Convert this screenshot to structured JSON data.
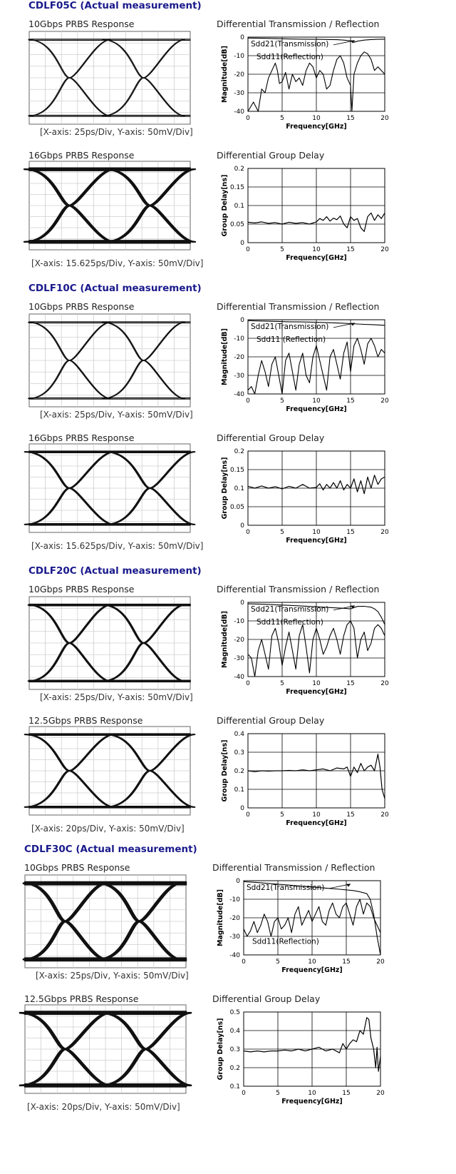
{
  "sections": [
    {
      "title": "CDLF05C (Actual measurement)",
      "eye1": {
        "label": "10Gbps PRBS Response",
        "caption": "[X-axis: 25ps/Div, Y-axis: 50mV/Div]",
        "ui_fraction": 0.46,
        "trace_width": 1.2
      },
      "plot1": {
        "label": "Differential Transmission / Reflection",
        "kind": "sparam",
        "annotations": [
          "Sdd21(Transmission)",
          "Sdd11(Reflection)"
        ]
      },
      "eye2": {
        "label": "16Gbps PRBS Response",
        "caption": "[X-axis: 15.625ps/Div, Y-axis: 50mV/Div]",
        "ui_fraction": 0.5,
        "trace_width": 2.2
      },
      "plot2": {
        "label": "Differential Group Delay",
        "kind": "gd"
      }
    },
    {
      "title": "CDLF10C (Actual measurement)",
      "eye1": {
        "label": "10Gbps PRBS Response",
        "caption": "[X-axis: 25ps/Div, Y-axis: 50mV/Div]",
        "ui_fraction": 0.46,
        "trace_width": 1.3
      },
      "plot1": {
        "label": "Differential Transmission / Reflection",
        "kind": "sparam",
        "annotations": [
          "Sdd21(Transmission)",
          "Sdd11 (Reflection)"
        ]
      },
      "eye2": {
        "label": "16Gbps PRBS Response",
        "caption": "[X-axis: 15.625ps/Div, Y-axis: 50mV/Div]",
        "ui_fraction": 0.5,
        "trace_width": 2.0
      },
      "plot2": {
        "label": "Differential Group Delay",
        "kind": "gd"
      }
    },
    {
      "title": "CDLF20C (Actual measurement)",
      "eye1": {
        "label": "10Gbps PRBS Response",
        "caption": "[X-axis: 25ps/Div, Y-axis: 50mV/Div]",
        "ui_fraction": 0.46,
        "trace_width": 2.0
      },
      "plot1": {
        "label": "Differential Transmission / Reflection",
        "kind": "sparam",
        "annotations": [
          "Sdd21(Transmission)",
          "Sdd11(Reflection)"
        ]
      },
      "eye2": {
        "label": "12.5Gbps PRBS Response",
        "caption": "[X-axis: 20ps/Div, Y-axis: 50mV/Div]",
        "ui_fraction": 0.5,
        "trace_width": 2.0
      },
      "plot2": {
        "label": "Differential Group Delay",
        "kind": "gd"
      }
    },
    {
      "title": "CDLF30C (Actual measurement)",
      "eye1": {
        "label": "10Gbps PRBS Response",
        "caption": "[X-axis: 25ps/Div, Y-axis: 50mV/Div]",
        "ui_fraction": 0.46,
        "trace_width": 2.6
      },
      "plot1": {
        "label": "Differential Transmission / Reflection",
        "kind": "sparam",
        "annotations": [
          "Sdd21(Transmission)",
          "Sdd11(Reflection)"
        ]
      },
      "eye2": {
        "label": "12.5Gbps PRBS Response",
        "caption": "[X-axis: 20ps/Div, Y-axis: 50mV/Div]",
        "ui_fraction": 0.5,
        "trace_width": 2.6
      },
      "plot2": {
        "label": "Differential Group Delay",
        "kind": "gd"
      }
    }
  ],
  "chart_data": [
    {
      "id": "s0-sparam",
      "type": "line",
      "xlabel": "Frequency[GHz]",
      "ylabel": "Magnitude[dB]",
      "xlim": [
        0,
        20
      ],
      "ylim": [
        -40,
        0
      ],
      "xticks": [
        0,
        5,
        10,
        15,
        20
      ],
      "yticks": [
        0,
        -10,
        -20,
        -30,
        -40
      ],
      "grid": true,
      "series": [
        {
          "name": "Sdd21(Transmission)",
          "x": [
            0,
            2,
            4,
            6,
            8,
            10,
            12,
            13,
            14,
            15,
            15.5,
            16,
            17,
            18,
            19,
            20
          ],
          "y": [
            -0.5,
            -0.6,
            -0.8,
            -1,
            -1.1,
            -1.2,
            -1.3,
            -1.4,
            -1.6,
            -2,
            -2.8,
            -2.2,
            -1.6,
            -1.3,
            -1.2,
            -1.1
          ]
        },
        {
          "name": "Sdd11(Reflection)",
          "x": [
            0,
            0.8,
            1.5,
            2,
            2.5,
            3,
            3.5,
            4,
            4.3,
            4.6,
            5,
            5.5,
            6,
            6.5,
            7,
            7.5,
            8,
            8.5,
            9,
            9.5,
            10,
            10.5,
            11,
            11.5,
            12,
            12.5,
            13,
            13.5,
            14,
            14.5,
            15,
            15.2,
            15.5,
            16,
            16.5,
            17,
            17.5,
            18,
            18.5,
            19,
            19.5,
            20
          ],
          "y": [
            -40,
            -35,
            -40,
            -28,
            -30,
            -22,
            -18,
            -14,
            -18,
            -25,
            -24,
            -19,
            -28,
            -20,
            -24,
            -22,
            -26,
            -18,
            -14,
            -16,
            -22,
            -18,
            -20,
            -28,
            -26,
            -18,
            -12,
            -10,
            -14,
            -22,
            -26,
            -40,
            -20,
            -14,
            -10,
            -8,
            -9,
            -12,
            -18,
            -16,
            -18,
            -20
          ]
        }
      ]
    },
    {
      "id": "s0-gd",
      "type": "line",
      "xlabel": "Frequency[GHz]",
      "ylabel": "Group Delay[ns]",
      "xlim": [
        0,
        20
      ],
      "ylim": [
        0,
        0.2
      ],
      "xticks": [
        0,
        5,
        10,
        15,
        20
      ],
      "yticks": [
        0,
        0.05,
        0.1,
        0.15,
        0.2
      ],
      "grid": true,
      "series": [
        {
          "name": "",
          "x": [
            0,
            1,
            2,
            3,
            4,
            5,
            6,
            7,
            8,
            9,
            10,
            10.5,
            11,
            11.5,
            12,
            12.5,
            13,
            13.5,
            14,
            14.5,
            15,
            15.5,
            16,
            16.5,
            17,
            17.5,
            18,
            18.5,
            19,
            19.5,
            20
          ],
          "y": [
            0.055,
            0.053,
            0.056,
            0.052,
            0.054,
            0.05,
            0.055,
            0.052,
            0.054,
            0.05,
            0.056,
            0.065,
            0.06,
            0.07,
            0.058,
            0.066,
            0.062,
            0.072,
            0.05,
            0.04,
            0.07,
            0.06,
            0.065,
            0.04,
            0.03,
            0.07,
            0.08,
            0.06,
            0.075,
            0.065,
            0.08
          ]
        }
      ]
    },
    {
      "id": "s1-sparam",
      "type": "line",
      "xlabel": "Frequency[GHz]",
      "ylabel": "Magnitude[dB]",
      "xlim": [
        0,
        20
      ],
      "ylim": [
        -40,
        0
      ],
      "xticks": [
        0,
        5,
        10,
        15,
        20
      ],
      "yticks": [
        0,
        -10,
        -20,
        -30,
        -40
      ],
      "grid": true,
      "series": [
        {
          "name": "Sdd21(Transmission)",
          "x": [
            0,
            2,
            4,
            6,
            8,
            10,
            12,
            14,
            15,
            16,
            17,
            18,
            19,
            20
          ],
          "y": [
            -0.5,
            -0.7,
            -0.9,
            -1.1,
            -1.2,
            -1.4,
            -1.6,
            -1.9,
            -2.1,
            -2.3,
            -2.5,
            -2.6,
            -2.8,
            -3
          ]
        },
        {
          "name": "Sdd11 (Reflection)",
          "x": [
            0,
            0.5,
            1,
            1.5,
            2,
            2.5,
            3,
            3.5,
            4,
            4.5,
            5,
            5.5,
            6,
            6.5,
            7,
            7.5,
            8,
            8.5,
            9,
            9.5,
            10,
            10.5,
            11,
            11.5,
            12,
            12.5,
            13,
            13.5,
            14,
            14.5,
            15,
            15.5,
            16,
            16.5,
            17,
            17.5,
            18,
            18.5,
            19,
            19.5,
            20
          ],
          "y": [
            -38,
            -36,
            -40,
            -30,
            -22,
            -28,
            -36,
            -24,
            -20,
            -30,
            -40,
            -22,
            -18,
            -28,
            -38,
            -24,
            -18,
            -30,
            -34,
            -20,
            -14,
            -22,
            -30,
            -38,
            -20,
            -16,
            -24,
            -32,
            -18,
            -12,
            -28,
            -14,
            -10,
            -16,
            -24,
            -13,
            -10,
            -14,
            -20,
            -16,
            -18
          ]
        }
      ]
    },
    {
      "id": "s1-gd",
      "type": "line",
      "xlabel": "Frequency[GHz]",
      "ylabel": "Group Delay[ns]",
      "xlim": [
        0,
        20
      ],
      "ylim": [
        0,
        0.2
      ],
      "xticks": [
        0,
        5,
        10,
        15,
        20
      ],
      "yticks": [
        0,
        0.05,
        0.1,
        0.15,
        0.2
      ],
      "grid": true,
      "series": [
        {
          "name": "",
          "x": [
            0,
            1,
            2,
            3,
            4,
            5,
            6,
            7,
            8,
            9,
            10,
            10.5,
            11,
            11.5,
            12,
            12.5,
            13,
            13.5,
            14,
            14.5,
            15,
            15.5,
            16,
            16.5,
            17,
            17.5,
            18,
            18.5,
            19,
            19.5,
            20
          ],
          "y": [
            0.105,
            0.1,
            0.106,
            0.1,
            0.104,
            0.098,
            0.105,
            0.1,
            0.11,
            0.1,
            0.102,
            0.112,
            0.095,
            0.11,
            0.1,
            0.115,
            0.1,
            0.12,
            0.095,
            0.11,
            0.1,
            0.125,
            0.09,
            0.12,
            0.085,
            0.13,
            0.1,
            0.135,
            0.11,
            0.125,
            0.13
          ]
        }
      ]
    },
    {
      "id": "s2-sparam",
      "type": "line",
      "xlabel": "Frequency[GHz]",
      "ylabel": "Magnitude[dB]",
      "xlim": [
        0,
        20
      ],
      "ylim": [
        -40,
        0
      ],
      "xticks": [
        0,
        5,
        10,
        15,
        20
      ],
      "yticks": [
        0,
        -10,
        -20,
        -30,
        -40
      ],
      "grid": true,
      "series": [
        {
          "name": "Sdd21(Transmission)",
          "x": [
            0,
            2,
            4,
            6,
            8,
            10,
            12,
            14,
            15,
            16,
            17,
            18,
            18.5,
            19,
            19.5,
            20
          ],
          "y": [
            -0.8,
            -1,
            -1.3,
            -1.6,
            -2,
            -2.4,
            -2.8,
            -3.2,
            -3.5,
            -2.2,
            -2.1,
            -2.6,
            -3.5,
            -5,
            -8,
            -12
          ]
        },
        {
          "name": "Sdd11(Reflection)",
          "x": [
            0,
            0.5,
            1,
            1.5,
            2,
            2.5,
            3,
            3.5,
            4,
            4.5,
            5,
            5.5,
            6,
            6.5,
            7,
            7.5,
            8,
            8.5,
            9,
            9.5,
            10,
            10.5,
            11,
            11.5,
            12,
            12.5,
            13,
            13.5,
            14,
            14.5,
            15,
            15.5,
            16,
            16.5,
            17,
            17.5,
            18,
            18.5,
            19,
            19.5,
            20
          ],
          "y": [
            -28,
            -30,
            -40,
            -26,
            -20,
            -28,
            -36,
            -18,
            -14,
            -22,
            -34,
            -24,
            -16,
            -26,
            -36,
            -18,
            -12,
            -24,
            -38,
            -20,
            -14,
            -20,
            -28,
            -24,
            -18,
            -14,
            -20,
            -28,
            -18,
            -12,
            -10,
            -14,
            -30,
            -20,
            -16,
            -26,
            -22,
            -14,
            -12,
            -14,
            -18
          ]
        }
      ]
    },
    {
      "id": "s2-gd",
      "type": "line",
      "xlabel": "Frequency[GHz]",
      "ylabel": "Group Delay[ns]",
      "xlim": [
        0,
        20
      ],
      "ylim": [
        0,
        0.4
      ],
      "xticks": [
        0,
        5,
        10,
        15,
        20
      ],
      "yticks": [
        0,
        0.1,
        0.2,
        0.3,
        0.4
      ],
      "grid": true,
      "series": [
        {
          "name": "",
          "x": [
            0,
            1,
            2,
            3,
            4,
            5,
            6,
            7,
            8,
            9,
            10,
            11,
            12,
            13,
            14,
            14.5,
            15,
            15.5,
            16,
            16.5,
            17,
            17.5,
            18,
            18.5,
            19,
            19.3,
            19.6,
            20
          ],
          "y": [
            0.2,
            0.195,
            0.2,
            0.198,
            0.2,
            0.2,
            0.202,
            0.2,
            0.205,
            0.2,
            0.205,
            0.21,
            0.2,
            0.215,
            0.21,
            0.22,
            0.17,
            0.22,
            0.19,
            0.24,
            0.2,
            0.22,
            0.23,
            0.2,
            0.29,
            0.22,
            0.1,
            0.05
          ]
        }
      ]
    },
    {
      "id": "s3-sparam",
      "type": "line",
      "xlabel": "Frequency[GHz]",
      "ylabel": "Magnitude[dB]",
      "xlim": [
        0,
        20
      ],
      "ylim": [
        -40,
        0
      ],
      "xticks": [
        0,
        5,
        10,
        15,
        20
      ],
      "yticks": [
        0,
        -10,
        -20,
        -30,
        -40
      ],
      "grid": true,
      "series": [
        {
          "name": "Sdd21(Transmission)",
          "x": [
            0,
            2,
            4,
            6,
            8,
            10,
            12,
            14,
            16,
            17,
            18,
            18.5,
            19,
            19.5,
            20
          ],
          "y": [
            -0.5,
            -1,
            -1.6,
            -2.2,
            -2.8,
            -3.4,
            -4,
            -4.6,
            -5.3,
            -6,
            -7,
            -10,
            -18,
            -30,
            -40
          ]
        },
        {
          "name": "Sdd11(Reflection)",
          "x": [
            0,
            0.5,
            1,
            1.5,
            2,
            2.5,
            3,
            3.5,
            4,
            4.5,
            5,
            5.5,
            6,
            6.5,
            7,
            7.5,
            8,
            8.5,
            9,
            9.5,
            10,
            10.5,
            11,
            11.5,
            12,
            12.5,
            13,
            13.5,
            14,
            14.5,
            15,
            15.5,
            16,
            16.5,
            17,
            17.5,
            18,
            18.5,
            19,
            19.5,
            20
          ],
          "y": [
            -26,
            -30,
            -27,
            -22,
            -28,
            -24,
            -18,
            -22,
            -30,
            -22,
            -20,
            -26,
            -24,
            -20,
            -28,
            -18,
            -14,
            -24,
            -20,
            -16,
            -22,
            -18,
            -14,
            -22,
            -24,
            -16,
            -12,
            -18,
            -20,
            -14,
            -12,
            -18,
            -24,
            -14,
            -10,
            -18,
            -12,
            -14,
            -20,
            -24,
            -28
          ]
        }
      ]
    },
    {
      "id": "s3-gd",
      "type": "line",
      "xlabel": "Frequency[GHz]",
      "ylabel": "Group Delay[ns]",
      "xlim": [
        0,
        20
      ],
      "ylim": [
        0.1,
        0.5
      ],
      "xticks": [
        0,
        5,
        10,
        15,
        20
      ],
      "yticks": [
        0.1,
        0.2,
        0.3,
        0.4,
        0.5
      ],
      "grid": true,
      "series": [
        {
          "name": "",
          "x": [
            0,
            1,
            2,
            3,
            4,
            5,
            6,
            7,
            8,
            9,
            10,
            11,
            12,
            13,
            14,
            14.5,
            15,
            15.5,
            16,
            16.5,
            17,
            17.5,
            18,
            18.3,
            18.6,
            19,
            19.3,
            19.5,
            19.7,
            20
          ],
          "y": [
            0.29,
            0.285,
            0.29,
            0.285,
            0.29,
            0.29,
            0.295,
            0.29,
            0.3,
            0.29,
            0.3,
            0.31,
            0.29,
            0.3,
            0.28,
            0.33,
            0.3,
            0.33,
            0.35,
            0.34,
            0.4,
            0.38,
            0.47,
            0.46,
            0.36,
            0.3,
            0.2,
            0.31,
            0.18,
            0.26
          ]
        }
      ]
    }
  ]
}
